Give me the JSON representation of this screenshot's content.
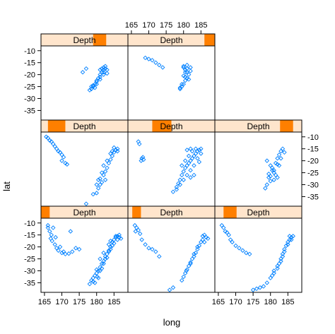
{
  "chart_data": {
    "type": "scatter",
    "xlabel": "long",
    "ylabel": "lat",
    "xlim": [
      164,
      189
    ],
    "ylim": [
      -39,
      -8
    ],
    "xticks": [
      165,
      170,
      175,
      180,
      185
    ],
    "yticks": [
      -10,
      -15,
      -20,
      -25,
      -30,
      -35
    ],
    "strip_label": "Depth",
    "layout": {
      "columns": 3,
      "rows": 3,
      "panels": 8,
      "order": "bottom-left to top, row-wise"
    },
    "panels": [
      {
        "label": "Depth",
        "depth_range": [
          0.0,
          0.1
        ],
        "points": [
          [
            166,
            -12
          ],
          [
            166.5,
            -13.5
          ],
          [
            167,
            -15
          ],
          [
            166.8,
            -16.5
          ],
          [
            167.2,
            -17.5
          ],
          [
            168,
            -19
          ],
          [
            168.5,
            -20.5
          ],
          [
            169,
            -21.5
          ],
          [
            170,
            -22.5
          ],
          [
            171,
            -23
          ],
          [
            172,
            -22.8
          ],
          [
            173,
            -22
          ],
          [
            172.5,
            -13.5
          ],
          [
            174,
            -20.5
          ],
          [
            175,
            -21
          ],
          [
            166,
            -11
          ],
          [
            167.5,
            -12
          ],
          [
            168.2,
            -16
          ],
          [
            169.5,
            -20
          ],
          [
            170.5,
            -22
          ],
          [
            178,
            -35.5
          ],
          [
            178.5,
            -34
          ],
          [
            179,
            -33
          ],
          [
            179.5,
            -32
          ],
          [
            179,
            -34.5
          ],
          [
            180,
            -31
          ],
          [
            180.5,
            -30
          ],
          [
            181,
            -28.5
          ],
          [
            180,
            -29.5
          ],
          [
            181.5,
            -27
          ],
          [
            182,
            -26
          ],
          [
            181,
            -25
          ],
          [
            182.5,
            -24
          ],
          [
            183,
            -23
          ],
          [
            182,
            -22.5
          ],
          [
            183.5,
            -21.5
          ],
          [
            184,
            -20
          ],
          [
            183.5,
            -19
          ],
          [
            184.5,
            -18
          ],
          [
            185,
            -17
          ],
          [
            185.5,
            -16
          ],
          [
            186,
            -15.5
          ],
          [
            186.5,
            -16
          ],
          [
            187,
            -16.5
          ],
          [
            185,
            -18.5
          ],
          [
            184,
            -21
          ],
          [
            183,
            -24.5
          ],
          [
            182,
            -27
          ],
          [
            181,
            -30
          ],
          [
            180.2,
            -32.5
          ],
          [
            186,
            -17
          ],
          [
            186.5,
            -15
          ],
          [
            185.5,
            -15.5
          ],
          [
            184.5,
            -19.5
          ],
          [
            183.5,
            -22
          ],
          [
            179.5,
            -35
          ],
          [
            180.5,
            -33
          ],
          [
            181.5,
            -29
          ],
          [
            182.5,
            -25
          ],
          [
            184,
            -17.5
          ]
        ]
      },
      {
        "label": "Depth",
        "depth_range": [
          0.05,
          0.15
        ],
        "points": [
          [
            166,
            -11
          ],
          [
            166.5,
            -12
          ],
          [
            167,
            -13
          ],
          [
            166.2,
            -13.5
          ],
          [
            167.5,
            -14.5
          ],
          [
            168,
            -17
          ],
          [
            169,
            -19
          ],
          [
            170,
            -20.5
          ],
          [
            171,
            -21
          ],
          [
            172,
            -22
          ],
          [
            173,
            -24
          ],
          [
            186,
            -15
          ],
          [
            186.5,
            -16
          ],
          [
            185.5,
            -17
          ],
          [
            185,
            -18
          ],
          [
            184.5,
            -19.5
          ],
          [
            184,
            -21
          ],
          [
            183.5,
            -22.5
          ],
          [
            183,
            -24
          ],
          [
            182.5,
            -25
          ],
          [
            182,
            -26.5
          ],
          [
            181.5,
            -28
          ],
          [
            181,
            -29.5
          ],
          [
            180.5,
            -31
          ],
          [
            180,
            -32.5
          ],
          [
            179.5,
            -34
          ],
          [
            177,
            -37
          ],
          [
            176,
            -38
          ],
          [
            185.5,
            -15.5
          ],
          [
            184,
            -20
          ],
          [
            183,
            -23
          ],
          [
            182,
            -27
          ],
          [
            180.8,
            -30
          ],
          [
            187,
            -16.5
          ],
          [
            186,
            -18
          ]
        ]
      },
      {
        "label": "Depth",
        "depth_range": [
          0.1,
          0.25
        ],
        "points": [
          [
            166,
            -11
          ],
          [
            166.5,
            -12
          ],
          [
            167,
            -13.5
          ],
          [
            167.5,
            -14
          ],
          [
            168,
            -15
          ],
          [
            168.5,
            -17
          ],
          [
            169,
            -18
          ],
          [
            170,
            -19.5
          ],
          [
            171,
            -20.5
          ],
          [
            172,
            -21.5
          ],
          [
            173,
            -22.5
          ],
          [
            174,
            -23
          ],
          [
            175,
            -38
          ],
          [
            176,
            -37.5
          ],
          [
            177,
            -37
          ],
          [
            178,
            -36.5
          ],
          [
            179,
            -35
          ],
          [
            180,
            -33
          ],
          [
            181,
            -31
          ],
          [
            182,
            -29
          ],
          [
            182.5,
            -27
          ],
          [
            183,
            -25
          ],
          [
            183.5,
            -23
          ],
          [
            184,
            -21
          ],
          [
            184.5,
            -19.5
          ],
          [
            185,
            -18
          ],
          [
            185.5,
            -17
          ],
          [
            186,
            -16
          ],
          [
            186.5,
            -15.5
          ],
          [
            185.5,
            -15.5
          ],
          [
            184,
            -22
          ],
          [
            183,
            -26
          ],
          [
            182,
            -28
          ],
          [
            181,
            -30
          ],
          [
            186,
            -17
          ],
          [
            185,
            -19
          ],
          [
            180.5,
            -32
          ],
          [
            183.5,
            -24
          ]
        ]
      },
      {
        "label": "Depth",
        "depth_range": [
          0.08,
          0.28
        ],
        "points": [
          [
            165.5,
            -10
          ],
          [
            166,
            -10.5
          ],
          [
            166.5,
            -11.5
          ],
          [
            167,
            -12
          ],
          [
            167.5,
            -13
          ],
          [
            168,
            -14
          ],
          [
            168.5,
            -15
          ],
          [
            169,
            -16
          ],
          [
            169.5,
            -16.5
          ],
          [
            170,
            -17.5
          ],
          [
            170.5,
            -18.5
          ],
          [
            170,
            -20
          ],
          [
            171,
            -21
          ],
          [
            171.5,
            -21.5
          ],
          [
            177,
            -38
          ],
          [
            179,
            -34
          ],
          [
            180,
            -33.5
          ],
          [
            180.5,
            -31.5
          ],
          [
            181,
            -30
          ],
          [
            181.5,
            -29
          ],
          [
            181,
            -27.5
          ],
          [
            182,
            -26
          ],
          [
            182.5,
            -24.5
          ],
          [
            183,
            -23
          ],
          [
            183.5,
            -21
          ],
          [
            184,
            -19.5
          ],
          [
            184.5,
            -18
          ],
          [
            185,
            -16.5
          ],
          [
            185.5,
            -15.5
          ],
          [
            186,
            -15
          ],
          [
            184,
            -17
          ],
          [
            183,
            -20
          ],
          [
            182,
            -22
          ],
          [
            181.5,
            -25
          ],
          [
            180.5,
            -28
          ],
          [
            180,
            -30
          ],
          [
            185,
            -14.5
          ],
          [
            186,
            -16
          ],
          [
            184.5,
            -16
          ],
          [
            182.5,
            -28
          ]
        ]
      },
      {
        "label": "Depth",
        "depth_range": [
          0.28,
          0.5
        ],
        "points": [
          [
            167,
            -12
          ],
          [
            167.3,
            -13
          ],
          [
            168,
            -19
          ],
          [
            168.5,
            -19.5
          ],
          [
            167.8,
            -20
          ],
          [
            168.3,
            -18.5
          ],
          [
            177,
            -33
          ],
          [
            178,
            -31
          ],
          [
            178.5,
            -29.5
          ],
          [
            179,
            -28
          ],
          [
            179.5,
            -26
          ],
          [
            180,
            -24.5
          ],
          [
            180.5,
            -23
          ],
          [
            181,
            -22
          ],
          [
            181.5,
            -21
          ],
          [
            182,
            -20
          ],
          [
            182.5,
            -19
          ],
          [
            183,
            -18
          ],
          [
            183.5,
            -17
          ],
          [
            184,
            -16
          ],
          [
            184.5,
            -15.5
          ],
          [
            185,
            -15
          ],
          [
            183,
            -22
          ],
          [
            182,
            -24
          ],
          [
            181,
            -26
          ],
          [
            180,
            -28
          ],
          [
            179,
            -30
          ],
          [
            178,
            -32
          ],
          [
            184,
            -19
          ],
          [
            185,
            -17
          ],
          [
            183.5,
            -15
          ],
          [
            182.5,
            -16
          ],
          [
            181.5,
            -18
          ],
          [
            180.5,
            -20
          ],
          [
            179.5,
            -22
          ],
          [
            181,
            -15.5
          ],
          [
            182,
            -15
          ],
          [
            184.5,
            -20.5
          ],
          [
            183,
            -26
          ],
          [
            182,
            -27
          ]
        ]
      },
      {
        "label": "Depth",
        "depth_range": [
          0.75,
          0.9
        ],
        "points": [
          [
            179,
            -20
          ],
          [
            180,
            -22
          ],
          [
            180.5,
            -24
          ],
          [
            181,
            -25
          ],
          [
            181.5,
            -26
          ],
          [
            182,
            -27
          ],
          [
            181,
            -28
          ],
          [
            180,
            -26.5
          ],
          [
            179.5,
            -25.5
          ],
          [
            180.5,
            -23
          ],
          [
            181.5,
            -21
          ],
          [
            182,
            -19
          ],
          [
            182.5,
            -17.5
          ],
          [
            183,
            -16
          ],
          [
            183.5,
            -15
          ],
          [
            184,
            -16.5
          ],
          [
            183,
            -19
          ],
          [
            182,
            -21.5
          ],
          [
            179,
            -30
          ],
          [
            178.5,
            -31.5
          ],
          [
            180,
            -28.5
          ],
          [
            181,
            -24
          ],
          [
            182.5,
            -22
          ],
          [
            179.5,
            -27
          ]
        ]
      },
      {
        "label": "Depth",
        "depth_range": [
          0.6,
          0.75
        ],
        "points": [
          [
            181,
            -18
          ],
          [
            181.5,
            -17.5
          ],
          [
            182,
            -17
          ],
          [
            182.5,
            -17.5
          ],
          [
            183,
            -18
          ],
          [
            182,
            -19
          ],
          [
            181,
            -20
          ],
          [
            180.5,
            -21.5
          ],
          [
            180,
            -23
          ],
          [
            179.5,
            -24
          ],
          [
            179,
            -25
          ],
          [
            178.5,
            -26
          ],
          [
            178,
            -26.5
          ],
          [
            178.5,
            -25
          ],
          [
            179,
            -24.5
          ],
          [
            180,
            -22.5
          ],
          [
            181,
            -21
          ],
          [
            182,
            -20
          ],
          [
            176,
            -19
          ],
          [
            177,
            -17.5
          ],
          [
            182.5,
            -16.5
          ],
          [
            183,
            -19.5
          ],
          [
            181.5,
            -19
          ],
          [
            182,
            -18
          ],
          [
            181,
            -22
          ],
          [
            180,
            -24
          ],
          [
            179.5,
            -25.5
          ]
        ]
      },
      {
        "label": "Depth",
        "depth_range": [
          0.88,
          1.0
        ],
        "points": [
          [
            169,
            -13
          ],
          [
            170,
            -13.5
          ],
          [
            171,
            -14
          ],
          [
            172,
            -15
          ],
          [
            173,
            -16
          ],
          [
            174,
            -17
          ],
          [
            180,
            -17
          ],
          [
            180.5,
            -18
          ],
          [
            181,
            -19
          ],
          [
            181.5,
            -20
          ],
          [
            181,
            -21.5
          ],
          [
            180.5,
            -22.5
          ],
          [
            180,
            -24
          ],
          [
            179.5,
            -25
          ],
          [
            179,
            -26
          ],
          [
            180,
            -20.5
          ],
          [
            181,
            -17.5
          ],
          [
            182,
            -18.5
          ],
          [
            181.5,
            -22
          ],
          [
            180.5,
            -19
          ],
          [
            179.5,
            -24
          ],
          [
            180,
            -16.5
          ],
          [
            181,
            -16
          ],
          [
            182,
            -17
          ],
          [
            179,
            -25.5
          ],
          [
            180.5,
            -21
          ]
        ]
      }
    ]
  },
  "colors": {
    "point": "#0080ff",
    "strip_bg": "#ffe5cc",
    "strip_mark": "#ff7f00",
    "border": "#000000"
  }
}
